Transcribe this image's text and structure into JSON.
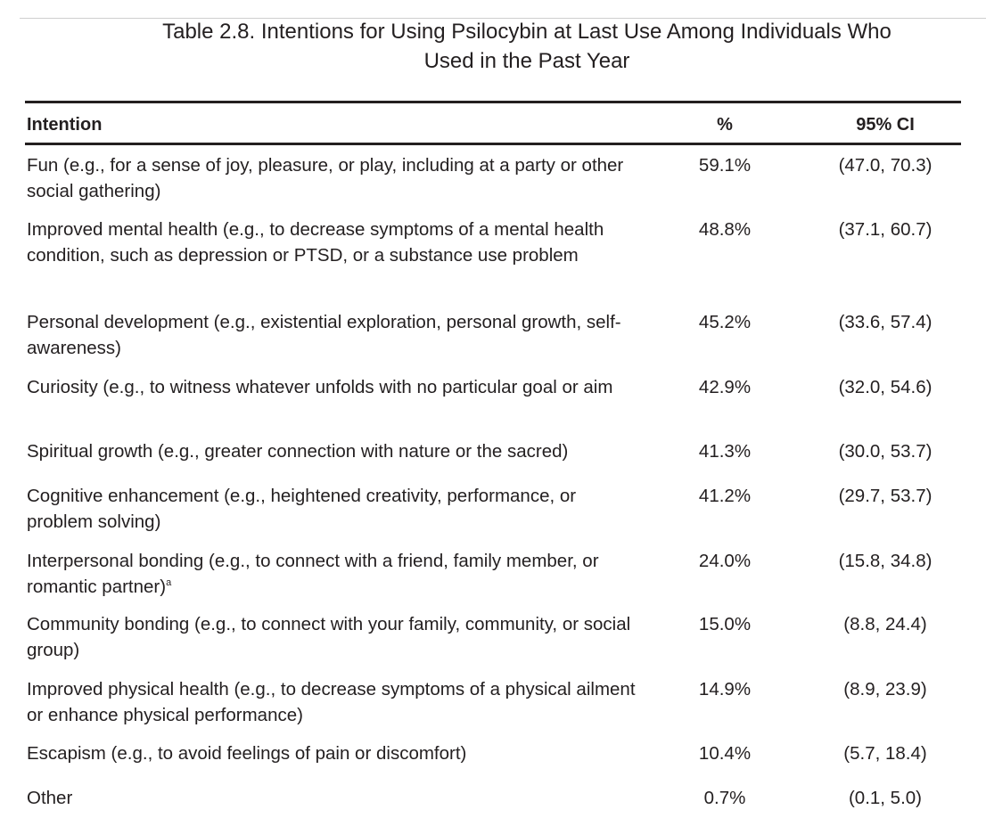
{
  "title": {
    "line1": "Table 2.8. Intentions for Using Psilocybin at Last Use Among Individuals Who",
    "line2": "Used in the Past Year"
  },
  "table": {
    "headers": {
      "intention": "Intention",
      "percent": "%",
      "ci": "95% CI"
    },
    "rows": [
      {
        "intention": "Fun (e.g., for a sense of joy, pleasure, or play, including at a party or other social gathering)",
        "percent": "59.1%",
        "ci": "(47.0, 70.3)"
      },
      {
        "intention": "Improved mental health (e.g., to decrease symptoms of a mental health condition, such as depression or PTSD, or a substance use problem",
        "percent": "48.8%",
        "ci": "(37.1, 60.7)"
      },
      {
        "intention": "Personal development (e.g., existential exploration, personal growth, self-awareness)",
        "percent": "45.2%",
        "ci": "(33.6, 57.4)"
      },
      {
        "intention": "Curiosity (e.g., to witness whatever unfolds with no particular goal or aim",
        "percent": "42.9%",
        "ci": "(32.0, 54.6)"
      },
      {
        "intention": "Spiritual growth (e.g., greater connection with nature or the sacred)",
        "percent": "41.3%",
        "ci": "(30.0, 53.7)"
      },
      {
        "intention": "Cognitive enhancement (e.g., heightened creativity, performance, or problem solving)",
        "percent": "41.2%",
        "ci": "(29.7, 53.7)"
      },
      {
        "intention": "Interpersonal bonding (e.g., to connect with a friend, family member, or romantic partner)",
        "footnote": "a",
        "percent": "24.0%",
        "ci": "(15.8, 34.8)"
      },
      {
        "intention": "Community bonding (e.g., to connect with your family, community, or social group)",
        "percent": "15.0%",
        "ci": "(8.8, 24.4)"
      },
      {
        "intention": "Improved physical health (e.g., to decrease symptoms of a physical ailment or enhance physical performance)",
        "percent": "14.9%",
        "ci": "(8.9, 23.9)"
      },
      {
        "intention": "Escapism (e.g., to avoid feelings of pain or discomfort)",
        "percent": "10.4%",
        "ci": "(5.7, 18.4)"
      },
      {
        "intention": "Other",
        "percent": "0.7%",
        "ci": "(0.1, 5.0)"
      }
    ]
  }
}
